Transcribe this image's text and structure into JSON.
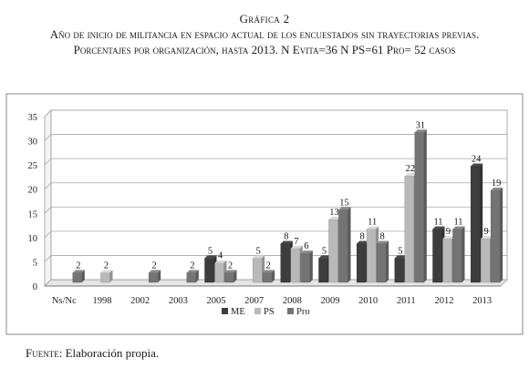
{
  "caption": {
    "number": "Gráfica 2",
    "title": "Año de inicio de militancia en espacio actual de los encuestados sin trayectorias previas. Porcentajes por organización, hasta 2013. N Evita=36 N PS=61 Pro= 52 casos"
  },
  "source": {
    "label": "Fuente:",
    "text": "Elaboración propia."
  },
  "colors": {
    "ME": "#3d3d3d",
    "PS": "#b9b9b9",
    "Pro": "#747474"
  },
  "chart_data": {
    "type": "bar",
    "categories": [
      "Ns/Nc",
      "1998",
      "2002",
      "2003",
      "2005",
      "2007",
      "2008",
      "2009",
      "2010",
      "2011",
      "2012",
      "2013"
    ],
    "series": [
      {
        "name": "ME",
        "values": [
          null,
          null,
          null,
          null,
          5,
          null,
          8,
          5,
          8,
          5,
          11,
          24
        ]
      },
      {
        "name": "PS",
        "values": [
          null,
          2,
          null,
          null,
          4,
          5,
          7,
          13,
          11,
          22,
          9,
          9
        ]
      },
      {
        "name": "Pro",
        "values": [
          2,
          null,
          2,
          2,
          2,
          2,
          6,
          15,
          8,
          31,
          11,
          19
        ]
      }
    ],
    "ylim": [
      0,
      35
    ],
    "yticks": [
      0,
      5,
      10,
      15,
      20,
      25,
      30,
      35
    ],
    "grid": true,
    "legend": "bottom",
    "data_labels": true
  }
}
